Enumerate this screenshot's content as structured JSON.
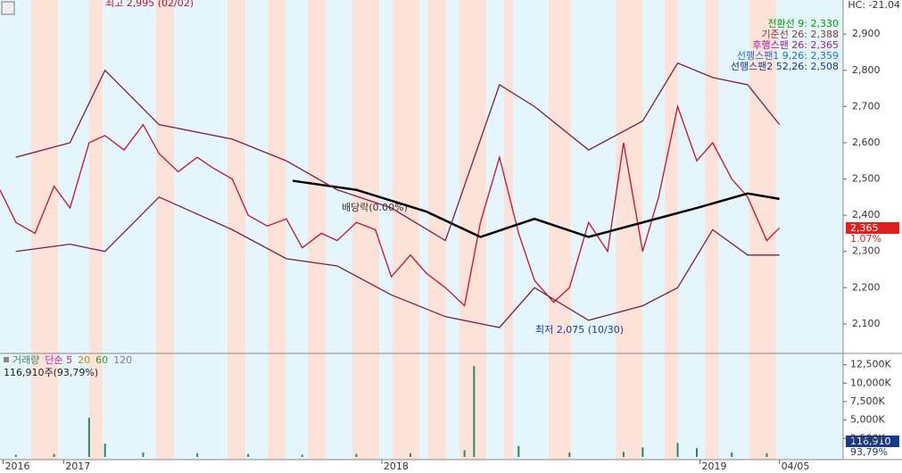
{
  "chart_data": {
    "type": "line",
    "xlim": [
      2016.8,
      2019.45
    ],
    "xticks": [
      {
        "value": 2016.81,
        "label": "2016"
      },
      {
        "value": 2017,
        "label": "2017"
      },
      {
        "value": 2018,
        "label": "2018"
      },
      {
        "value": 2019,
        "label": "2019"
      },
      {
        "value": 2019.25,
        "label": "04/05"
      }
    ],
    "ylim": [
      2021,
      2994
    ],
    "yticks": [
      {
        "value": 2100,
        "label": "2,100"
      },
      {
        "value": 2200,
        "label": "2,200"
      },
      {
        "value": 2300,
        "label": "2,300"
      },
      {
        "value": 2400,
        "label": "2,400"
      },
      {
        "value": 2500,
        "label": "2,500"
      },
      {
        "value": 2600,
        "label": "2,600"
      },
      {
        "value": 2700,
        "label": "2,700"
      },
      {
        "value": 2800,
        "label": "2,800"
      },
      {
        "value": 2900,
        "label": "2,900"
      }
    ],
    "series": [
      {
        "color": "#c8102e",
        "x": [
          2016.8,
          2016.85,
          2016.91,
          2016.97,
          2017.02,
          2017.08,
          2017.13,
          2017.19,
          2017.25,
          2017.3,
          2017.36,
          2017.42,
          2017.47,
          2017.53,
          2017.58,
          2017.64,
          2017.7,
          2017.75,
          2017.81,
          2017.86,
          2017.92,
          2017.98,
          2018.03,
          2018.09,
          2018.14,
          2018.2,
          2018.26,
          2018.31,
          2018.37,
          2018.43,
          2018.48,
          2018.54,
          2018.59,
          2018.65,
          2018.71,
          2018.76,
          2018.82,
          2018.87,
          2018.93,
          2018.99,
          2019.04,
          2019.1,
          2019.15,
          2019.21,
          2019.25
        ],
        "values": [
          2470,
          2380,
          2350,
          2480,
          2420,
          2600,
          2620,
          2580,
          2650,
          2570,
          2520,
          2560,
          2530,
          2500,
          2400,
          2370,
          2390,
          2310,
          2350,
          2330,
          2380,
          2360,
          2230,
          2290,
          2240,
          2200,
          2150,
          2380,
          2560,
          2350,
          2220,
          2160,
          2200,
          2380,
          2300,
          2600,
          2300,
          2450,
          2700,
          2550,
          2600,
          2500,
          2450,
          2330,
          2365
        ]
      },
      {
        "color": "#000000",
        "x": [
          2017.72,
          2017.92,
          2018.14,
          2018.31,
          2018.48,
          2018.65,
          2018.82,
          2018.99,
          2019.15,
          2019.25
        ],
        "values": [
          2495,
          2470,
          2410,
          2340,
          2390,
          2340,
          2380,
          2420,
          2460,
          2445
        ]
      },
      {
        "color": "#7a1f4a",
        "x": [
          2016.85,
          2017.02,
          2017.13,
          2017.3,
          2017.53,
          2017.7,
          2017.86,
          2018.03,
          2018.2,
          2018.37,
          2018.48,
          2018.65,
          2018.82,
          2018.93,
          2019.04,
          2019.15,
          2019.25
        ],
        "values": [
          2560,
          2600,
          2800,
          2650,
          2610,
          2550,
          2470,
          2420,
          2330,
          2760,
          2700,
          2580,
          2660,
          2820,
          2780,
          2760,
          2650
        ]
      },
      {
        "color": "#7a1f4a",
        "x": [
          2016.85,
          2017.02,
          2017.13,
          2017.3,
          2017.53,
          2017.7,
          2017.86,
          2018.03,
          2018.2,
          2018.37,
          2018.48,
          2018.65,
          2018.82,
          2018.93,
          2019.04,
          2019.15,
          2019.25
        ],
        "values": [
          2300,
          2320,
          2300,
          2450,
          2360,
          2280,
          2260,
          2180,
          2120,
          2090,
          2200,
          2110,
          2150,
          2200,
          2360,
          2290,
          2290
        ]
      }
    ],
    "legend": [
      {
        "label": "전환선 9: 2,330",
        "color": "#00a000"
      },
      {
        "label": "기준선 26: 2,388",
        "color": "#8b3a3a"
      },
      {
        "label": "후행스팬 26: 2,365",
        "color": "#a020a0"
      },
      {
        "label": "선행스팬1 9,26: 2,359",
        "color": "#1e6fd9"
      },
      {
        "label": "선행스팬2 52,26: 2,508",
        "color": "#1a3a8a"
      }
    ],
    "indicator_header": "HC: -21.04",
    "annotations": {
      "high": "최고 2,995 (02/02)",
      "low": "최저 2,075 (10/30)",
      "dividend": "배당락(0.00%)"
    },
    "price_tag": {
      "price": "2,365",
      "change": "1.07%"
    },
    "volume": {
      "color": "#2a8a5a",
      "ylim": [
        0,
        13900
      ],
      "yticks": [
        {
          "value": 2500,
          "label": "2,500K"
        },
        {
          "value": 5000,
          "label": "5,000K"
        },
        {
          "value": 7500,
          "label": "7,500K"
        },
        {
          "value": 10000,
          "label": "10,000K"
        },
        {
          "value": 12500,
          "label": "12,500K"
        }
      ],
      "x": [
        2016.85,
        2016.97,
        2017.08,
        2017.13,
        2017.25,
        2017.42,
        2017.58,
        2017.75,
        2017.92,
        2018.09,
        2018.26,
        2018.29,
        2018.43,
        2018.59,
        2018.76,
        2018.82,
        2018.93,
        2018.99,
        2019.1,
        2019.21
      ],
      "values": [
        300,
        400,
        5300,
        1800,
        600,
        500,
        400,
        300,
        400,
        500,
        900,
        12300,
        1500,
        600,
        700,
        1300,
        1900,
        1200,
        600,
        500
      ],
      "legend": [
        {
          "label": "거래량",
          "color": "#3a8a6a"
        },
        {
          "label": "단순 5",
          "color": "#c020c0"
        },
        {
          "label": "20",
          "color": "#e08000"
        },
        {
          "label": "60",
          "color": "#20a020"
        },
        {
          "label": "120",
          "color": "#808080"
        }
      ],
      "summary": "116,910주(93,79%)",
      "tag": {
        "value": "116,910",
        "change": "93,79%"
      }
    }
  }
}
